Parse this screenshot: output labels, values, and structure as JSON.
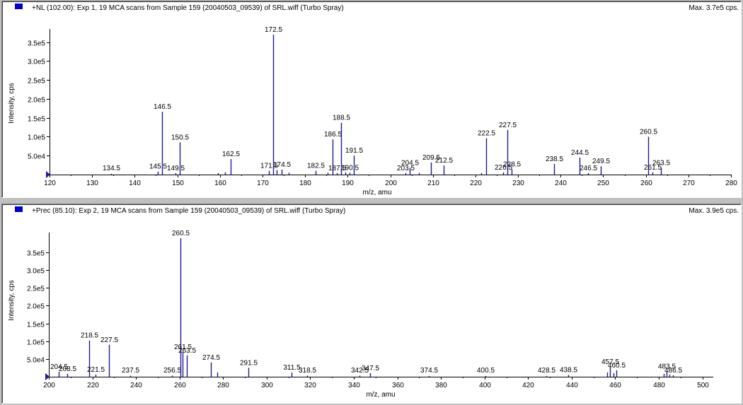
{
  "panels": [
    {
      "header": "+NL (102.00): Exp 1, 19 MCA scans from Sample 159 (20040503_09539) of SRL.wiff (Turbo Spray)",
      "max_label": "Max. 3.7e5 cps."
    },
    {
      "header": "+Prec (85.10): Exp 2, 19 MCA scans from Sample 159 (20040503_09539) of SRL.wiff (Turbo Spray)",
      "max_label": "Max. 3.9e5 cps."
    }
  ],
  "colors": {
    "peak": "#1c1c99",
    "legend_box": "#0000cc",
    "axis": "#000000"
  },
  "chart_data": [
    {
      "type": "bar",
      "xlabel": "m/z, amu",
      "ylabel": "Intensity, cps",
      "xlim": [
        120,
        280
      ],
      "ylim": [
        0,
        370000
      ],
      "x_ticks": [
        120,
        130,
        140,
        150,
        160,
        170,
        180,
        190,
        200,
        210,
        220,
        230,
        240,
        250,
        260,
        270,
        280
      ],
      "y_ticks": [
        {
          "v": 50000,
          "label": "5.0e4"
        },
        {
          "v": 100000,
          "label": "1.0e5"
        },
        {
          "v": 150000,
          "label": "1.5e5"
        },
        {
          "v": 200000,
          "label": "2.0e5"
        },
        {
          "v": 250000,
          "label": "2.5e5"
        },
        {
          "v": 300000,
          "label": "3.0e5"
        },
        {
          "v": 350000,
          "label": "3.5e5"
        }
      ],
      "peaks": [
        {
          "x": 134.5,
          "y": 2000,
          "label": "134.5"
        },
        {
          "x": 145.5,
          "y": 8000,
          "label": "145.5"
        },
        {
          "x": 146.5,
          "y": 166000,
          "label": "146.5"
        },
        {
          "x": 149.5,
          "y": 4000,
          "label": "149.5"
        },
        {
          "x": 150.5,
          "y": 85000,
          "label": "150.5"
        },
        {
          "x": 159.6,
          "y": 4000
        },
        {
          "x": 161.2,
          "y": 6000
        },
        {
          "x": 162.5,
          "y": 41000,
          "label": "162.5"
        },
        {
          "x": 171.5,
          "y": 10000,
          "label": "171.5"
        },
        {
          "x": 172.5,
          "y": 370000,
          "label": "172.5"
        },
        {
          "x": 173.4,
          "y": 12000
        },
        {
          "x": 174.5,
          "y": 13000,
          "label": "174.5"
        },
        {
          "x": 176.1,
          "y": 5000
        },
        {
          "x": 182.5,
          "y": 10000,
          "label": "182.5"
        },
        {
          "x": 185.3,
          "y": 5000
        },
        {
          "x": 186.5,
          "y": 93000,
          "label": "186.5"
        },
        {
          "x": 187.5,
          "y": 4000,
          "label": "187.5"
        },
        {
          "x": 188.5,
          "y": 137000,
          "label": "188.5"
        },
        {
          "x": 189.5,
          "y": 6000
        },
        {
          "x": 190.5,
          "y": 5000,
          "label": "190.5"
        },
        {
          "x": 191.5,
          "y": 50000,
          "label": "191.5"
        },
        {
          "x": 203.5,
          "y": 4000,
          "label": "203.5"
        },
        {
          "x": 204.5,
          "y": 18000,
          "label": "204.5"
        },
        {
          "x": 206.8,
          "y": 4000
        },
        {
          "x": 209.5,
          "y": 32000,
          "label": "209.5"
        },
        {
          "x": 212.5,
          "y": 24000,
          "label": "212.5"
        },
        {
          "x": 221.3,
          "y": 4000
        },
        {
          "x": 222.5,
          "y": 96000,
          "label": "222.5"
        },
        {
          "x": 226.5,
          "y": 6000,
          "label": "226.5"
        },
        {
          "x": 227.5,
          "y": 118000,
          "label": "227.5"
        },
        {
          "x": 228.5,
          "y": 14000,
          "label": "228.5"
        },
        {
          "x": 238.5,
          "y": 28000,
          "label": "238.5"
        },
        {
          "x": 244.5,
          "y": 45000,
          "label": "244.5"
        },
        {
          "x": 246.5,
          "y": 4000,
          "label": "246.5"
        },
        {
          "x": 249.5,
          "y": 22000,
          "label": "249.5"
        },
        {
          "x": 260.5,
          "y": 100000,
          "label": "260.5"
        },
        {
          "x": 261.5,
          "y": 6000,
          "label": "261.5"
        },
        {
          "x": 263.5,
          "y": 18000,
          "label": "263.5"
        }
      ]
    },
    {
      "type": "bar",
      "xlabel": "m/z, amu",
      "ylabel": "Intensity, cps",
      "xlim": [
        200,
        505
      ],
      "ylim": [
        0,
        390000
      ],
      "x_ticks": [
        200,
        220,
        240,
        260,
        280,
        300,
        320,
        340,
        360,
        380,
        400,
        420,
        440,
        460,
        480,
        500
      ],
      "y_ticks": [
        {
          "v": 50000,
          "label": "5.0e4"
        },
        {
          "v": 100000,
          "label": "1.0e5"
        },
        {
          "v": 150000,
          "label": "1.5e5"
        },
        {
          "v": 200000,
          "label": "2.0e5"
        },
        {
          "v": 250000,
          "label": "2.5e5"
        },
        {
          "v": 300000,
          "label": "3.0e5"
        },
        {
          "v": 350000,
          "label": "3.5e5"
        }
      ],
      "peaks": [
        {
          "x": 204.5,
          "y": 14000,
          "label": "204.5"
        },
        {
          "x": 208.5,
          "y": 8000,
          "label": "208.5"
        },
        {
          "x": 218.5,
          "y": 102000,
          "label": "218.5"
        },
        {
          "x": 221.5,
          "y": 6000,
          "label": "221.5"
        },
        {
          "x": 227.5,
          "y": 90000,
          "label": "227.5"
        },
        {
          "x": 237.5,
          "y": 3000,
          "label": "237.5"
        },
        {
          "x": 256.5,
          "y": 3000,
          "label": "256.5"
        },
        {
          "x": 260.5,
          "y": 390000,
          "label": "260.5"
        },
        {
          "x": 261.5,
          "y": 70000,
          "label": "261.5"
        },
        {
          "x": 263.5,
          "y": 60000,
          "label": "263.5"
        },
        {
          "x": 274.5,
          "y": 40000,
          "label": "274.5"
        },
        {
          "x": 277.3,
          "y": 12000
        },
        {
          "x": 291.5,
          "y": 25000,
          "label": "291.5"
        },
        {
          "x": 311.5,
          "y": 12000,
          "label": "311.5"
        },
        {
          "x": 318.5,
          "y": 3000,
          "label": "318.5"
        },
        {
          "x": 342.5,
          "y": 3000,
          "label": "342.5"
        },
        {
          "x": 347.5,
          "y": 10000,
          "label": "347.5"
        },
        {
          "x": 374.5,
          "y": 2000,
          "label": "374.5"
        },
        {
          "x": 400.5,
          "y": 2000,
          "label": "400.5"
        },
        {
          "x": 428.5,
          "y": 2000,
          "label": "428.5"
        },
        {
          "x": 438.5,
          "y": 5000,
          "label": "438.5"
        },
        {
          "x": 456.3,
          "y": 12000
        },
        {
          "x": 457.5,
          "y": 28000,
          "label": "457.5"
        },
        {
          "x": 459.2,
          "y": 10000
        },
        {
          "x": 460.5,
          "y": 18000,
          "label": "460.5"
        },
        {
          "x": 482.2,
          "y": 8000
        },
        {
          "x": 483.5,
          "y": 15000,
          "label": "483.5"
        },
        {
          "x": 485.0,
          "y": 6000
        },
        {
          "x": 486.5,
          "y": 4000,
          "label": "486.5"
        }
      ]
    }
  ]
}
